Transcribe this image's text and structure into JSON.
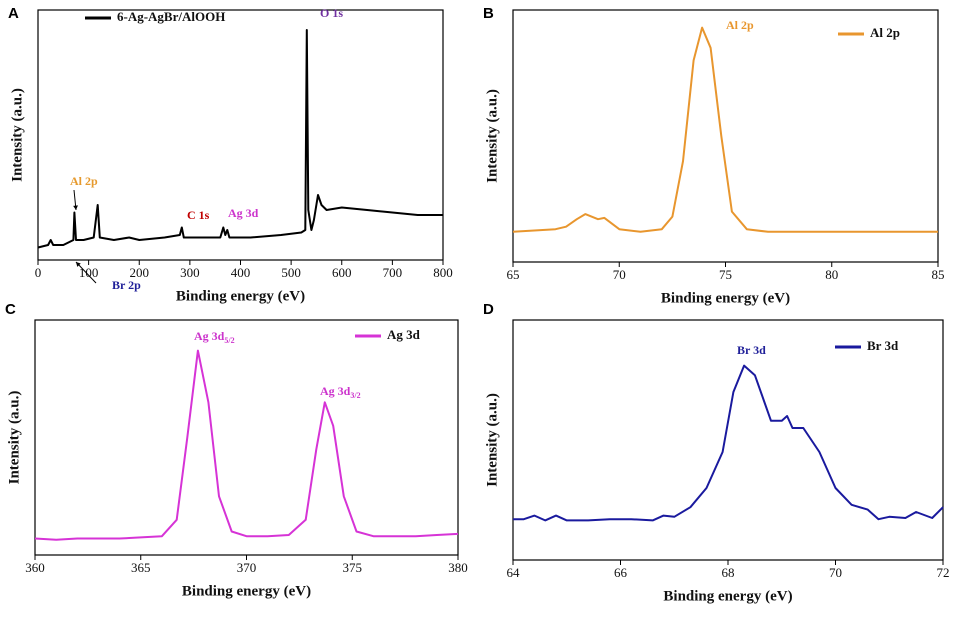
{
  "chart_data": [
    {
      "type": "line",
      "label": "A",
      "xlabel": "Binding energy (eV)",
      "ylabel": "Intensity (a.u.)",
      "xlim": [
        0,
        800
      ],
      "xticks": [
        0,
        100,
        200,
        300,
        400,
        500,
        600,
        700,
        800
      ],
      "ylim": [
        0,
        100
      ],
      "x": [
        0,
        20,
        25,
        30,
        50,
        60,
        70,
        72,
        75,
        90,
        110,
        118,
        122,
        150,
        180,
        200,
        250,
        280,
        284,
        288,
        320,
        360,
        366,
        370,
        374,
        378,
        420,
        480,
        520,
        528,
        531,
        534,
        540,
        545,
        553,
        560,
        570,
        600,
        650,
        700,
        750,
        800
      ],
      "series": [
        {
          "name": "6-Ag-AgBr/AlOOH",
          "color": "#000000",
          "values": [
            5,
            6,
            8,
            6,
            6,
            7,
            8,
            19,
            8,
            8,
            9,
            22,
            9,
            8,
            9,
            8,
            9,
            10,
            13,
            9,
            9,
            9,
            13,
            10,
            12,
            9,
            9,
            10,
            11,
            12,
            92,
            20,
            12,
            16,
            26,
            22,
            20,
            21,
            20,
            19,
            18,
            18
          ]
        }
      ],
      "annotations": [
        {
          "text": "O 1s",
          "color": "#7030a0"
        },
        {
          "text": "C 1s",
          "color": "#c00000"
        },
        {
          "text": "Ag 3d",
          "color": "#cc33cc"
        },
        {
          "text": "Al 2p",
          "color": "#e69a2e"
        },
        {
          "text": "Br 2p",
          "color": "#1f1f99"
        }
      ]
    },
    {
      "type": "line",
      "label": "B",
      "xlabel": "Binding energy (eV)",
      "ylabel": "Intensity (a.u.)",
      "xlim": [
        65,
        85
      ],
      "xticks": [
        65,
        70,
        75,
        80,
        85
      ],
      "ylim": [
        0,
        100
      ],
      "x": [
        65,
        66,
        67,
        67.5,
        68,
        68.4,
        69,
        69.3,
        70,
        71,
        72,
        72.5,
        73,
        73.5,
        73.9,
        74.3,
        74.8,
        75.3,
        76,
        77,
        78,
        80,
        82,
        84,
        85
      ],
      "series": [
        {
          "name": "Al 2p",
          "color": "#e8962e",
          "values": [
            12,
            12.5,
            13,
            14,
            17,
            19,
            17,
            17.5,
            13,
            12,
            13,
            18,
            40,
            80,
            93,
            85,
            50,
            20,
            13,
            12,
            12,
            12,
            12,
            12,
            12
          ]
        }
      ],
      "annotations": [
        {
          "text": "Al 2p",
          "color": "#e8962e"
        }
      ]
    },
    {
      "type": "line",
      "label": "C",
      "xlabel": "Binding energy (eV)",
      "ylabel": "Intensity (a.u.)",
      "xlim": [
        360,
        380
      ],
      "xticks": [
        360,
        365,
        370,
        375,
        380
      ],
      "ylim": [
        0,
        100
      ],
      "x": [
        360,
        361,
        362,
        363,
        364,
        365,
        366,
        366.7,
        367.2,
        367.7,
        368.2,
        368.7,
        369.3,
        370,
        371,
        372,
        372.8,
        373.3,
        373.7,
        374.1,
        374.6,
        375.2,
        376,
        377,
        378,
        379,
        380
      ],
      "series": [
        {
          "name": "Ag 3d",
          "color": "#d633d6",
          "values": [
            7,
            6.5,
            7,
            7,
            7,
            7.5,
            8,
            15,
            50,
            87,
            65,
            25,
            10,
            8,
            8,
            8.5,
            15,
            45,
            65,
            55,
            25,
            10,
            8,
            8,
            8,
            8.5,
            9
          ]
        }
      ],
      "annotations": [
        {
          "text": "Ag 3d",
          "sub": "5/2",
          "color": "#cc33cc"
        },
        {
          "text": "Ag 3d",
          "sub": "3/2",
          "color": "#cc33cc"
        }
      ]
    },
    {
      "type": "line",
      "label": "D",
      "xlabel": "Binding energy (eV)",
      "ylabel": "Intensity (a.u.)",
      "xlim": [
        64,
        72
      ],
      "xticks": [
        64,
        66,
        68,
        70,
        72
      ],
      "ylim": [
        0,
        100
      ],
      "x": [
        64,
        64.2,
        64.4,
        64.6,
        64.8,
        65,
        65.4,
        65.8,
        66.2,
        66.6,
        66.8,
        67,
        67.3,
        67.6,
        67.9,
        68.1,
        68.3,
        68.5,
        68.8,
        69,
        69.1,
        69.2,
        69.4,
        69.7,
        70,
        70.3,
        70.6,
        70.8,
        71,
        71.3,
        71.5,
        71.8,
        72
      ],
      "series": [
        {
          "name": "Br 3d",
          "color": "#1a1a9e",
          "values": [
            17,
            17,
            18.5,
            16.5,
            18.5,
            16.5,
            16.5,
            17,
            17,
            16.5,
            18.5,
            18,
            22,
            30,
            45,
            70,
            81,
            77,
            58,
            58,
            60,
            55,
            55,
            45,
            30,
            23,
            21,
            17,
            18,
            17.5,
            20,
            17.5,
            22
          ]
        }
      ],
      "annotations": [
        {
          "text": "Br 3d",
          "color": "#1f1f99"
        }
      ]
    }
  ]
}
